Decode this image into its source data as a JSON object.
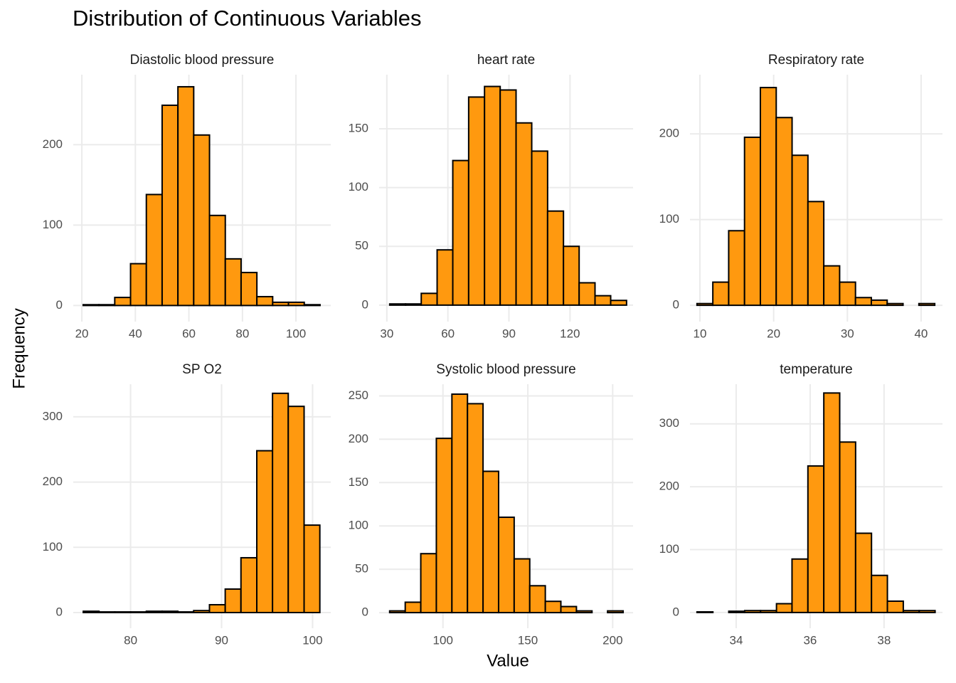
{
  "title": "Distribution of Continuous Variables",
  "xlabel": "Value",
  "ylabel": "Frequency",
  "chart_data": [
    {
      "type": "histogram",
      "title": "Diastolic blood pressure",
      "color": "#ff990f",
      "edgecolor": "#000000",
      "grid": true,
      "bins": [
        20.5,
        26.4,
        32.3,
        38.2,
        44.1,
        50,
        55.9,
        61.8,
        67.7,
        73.6,
        79.5,
        85.4,
        91.3,
        97.2,
        103.1,
        109
      ],
      "values": [
        1,
        1,
        10,
        52,
        138,
        249,
        272,
        212,
        112,
        58,
        41,
        11,
        4,
        4,
        1
      ],
      "xlim": [
        16.8,
        113
      ],
      "ylim": [
        -20,
        287
      ],
      "xticks": [
        20,
        40,
        60,
        80,
        100
      ],
      "yticks": [
        0,
        100,
        200
      ]
    },
    {
      "type": "histogram",
      "title": "heart rate",
      "color": "#ff990f",
      "edgecolor": "#000000",
      "grid": true,
      "bins": [
        31.4,
        39.2,
        46.9,
        54.7,
        62.4,
        70.2,
        78,
        85.7,
        93.5,
        101.2,
        109,
        116.8,
        124.5,
        132.3,
        140,
        147.8
      ],
      "values": [
        1,
        1,
        10,
        47,
        123,
        177,
        186,
        183,
        155,
        131,
        80,
        50,
        19,
        8,
        4
      ],
      "xlim": [
        26.2,
        151
      ],
      "ylim": [
        -14,
        196
      ],
      "xticks": [
        30,
        60,
        90,
        120
      ],
      "yticks": [
        0,
        50,
        100,
        150
      ]
    },
    {
      "type": "histogram",
      "title": "Respiratory rate",
      "color": "#ff990f",
      "edgecolor": "#000000",
      "grid": true,
      "bins": [
        9.6,
        11.75,
        13.9,
        16.05,
        18.2,
        20.35,
        22.5,
        24.65,
        26.8,
        28.95,
        31.1,
        33.25,
        35.4,
        37.55,
        39.7,
        41.85
      ],
      "values": [
        2,
        27,
        87,
        196,
        254,
        219,
        175,
        121,
        46,
        27,
        9,
        6,
        2,
        0,
        2
      ],
      "xlim": [
        8.65,
        42.9
      ],
      "ylim": [
        -19,
        269
      ],
      "xticks": [
        10,
        20,
        30,
        40
      ],
      "yticks": [
        0,
        100,
        200
      ]
    },
    {
      "type": "histogram",
      "title": "SP O2",
      "color": "#ff990f",
      "edgecolor": "#000000",
      "grid": true,
      "bins": [
        74.8,
        76.53,
        78.27,
        80,
        81.73,
        83.47,
        85.2,
        86.93,
        88.67,
        90.4,
        92.13,
        93.87,
        95.6,
        97.33,
        99.07,
        100.8
      ],
      "values": [
        2,
        1,
        1,
        1,
        2,
        2,
        1,
        3,
        12,
        36,
        84,
        248,
        336,
        316,
        134
      ],
      "xlim": [
        73.7,
        102
      ],
      "ylim": [
        -24,
        350
      ],
      "xticks": [
        80,
        90,
        100
      ],
      "yticks": [
        0,
        100,
        200,
        300
      ]
    },
    {
      "type": "histogram",
      "title": "Systolic blood pressure",
      "color": "#ff990f",
      "edgecolor": "#000000",
      "grid": true,
      "bins": [
        68.6,
        77.77,
        86.94,
        96.11,
        105.28,
        114.45,
        123.62,
        132.79,
        141.96,
        151.13,
        160.3,
        169.47,
        178.64,
        187.81,
        196.98,
        206.15
      ],
      "values": [
        2,
        12,
        68,
        201,
        252,
        241,
        163,
        110,
        62,
        31,
        13,
        7,
        2,
        0,
        2
      ],
      "xlim": [
        62.4,
        212
      ],
      "ylim": [
        -18,
        263.5
      ],
      "xticks": [
        100,
        150,
        200
      ],
      "yticks": [
        0,
        50,
        100,
        150,
        200,
        250
      ]
    },
    {
      "type": "histogram",
      "title": "temperature",
      "color": "#ff990f",
      "edgecolor": "#000000",
      "grid": true,
      "bins": [
        32.94,
        33.37,
        33.8,
        34.23,
        34.66,
        35.09,
        35.51,
        35.94,
        36.37,
        36.8,
        37.23,
        37.66,
        38.09,
        38.52,
        38.95,
        39.38
      ],
      "values": [
        1,
        0,
        2,
        3,
        3,
        14,
        85,
        233,
        349,
        271,
        126,
        59,
        18,
        3,
        3
      ],
      "xlim": [
        32.75,
        39.58
      ],
      "ylim": [
        -25,
        363
      ],
      "xticks": [
        34,
        36,
        38
      ],
      "yticks": [
        0,
        100,
        200,
        300
      ]
    }
  ]
}
